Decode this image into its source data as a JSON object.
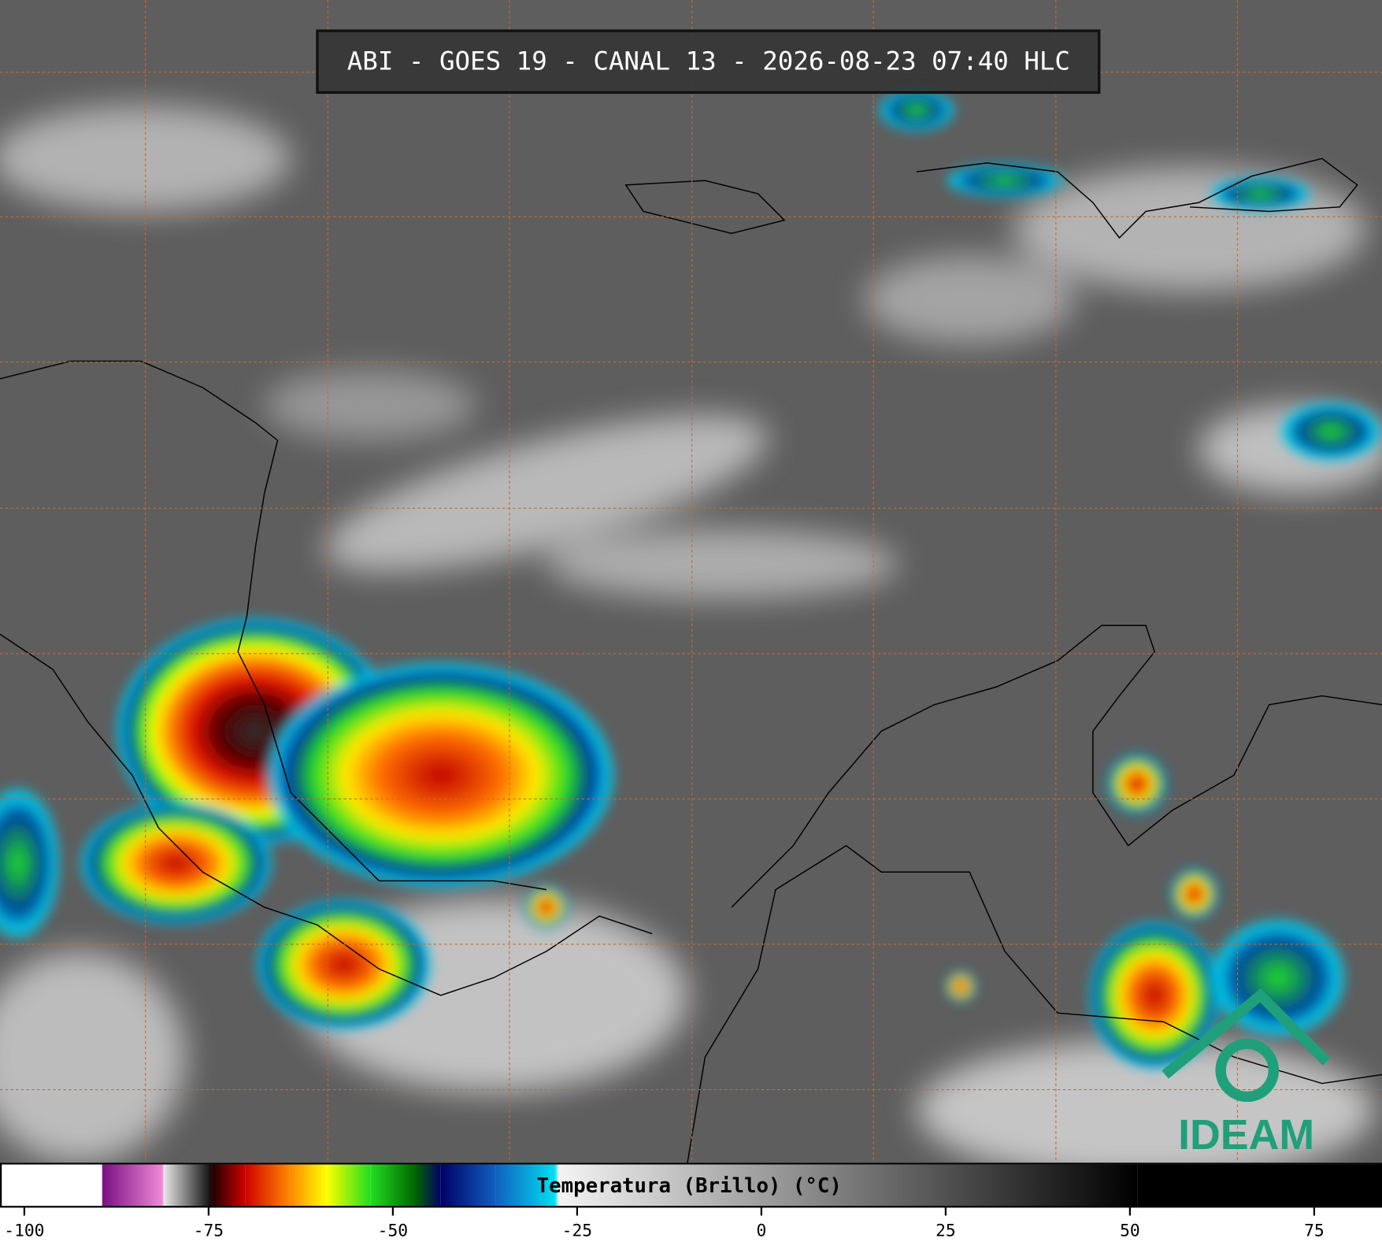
{
  "header": {
    "title": "ABI - GOES 19 - CANAL 13 - 2026-08-23 07:40 HLC"
  },
  "logo": "IDEAM",
  "colorbar": {
    "label": "Temperatura (Brillo) (°C)",
    "lim": [
      -103.3,
      84.2
    ],
    "ticks": [
      -100,
      -75,
      -50,
      -25,
      0,
      25,
      50,
      75
    ],
    "colormap": [
      {
        "value": -103.3,
        "color": "#ffffff"
      },
      {
        "value": -89.5,
        "color": "#ffffff"
      },
      {
        "value": -89.4,
        "color": "#7a1080"
      },
      {
        "value": -81.2,
        "color": "#f08ad8"
      },
      {
        "value": -81.1,
        "color": "#e8e8e8"
      },
      {
        "value": -75.2,
        "color": "#202020"
      },
      {
        "value": -74.5,
        "color": "#200000"
      },
      {
        "value": -70,
        "color": "#d00000"
      },
      {
        "value": -64,
        "color": "#ff8800"
      },
      {
        "value": -59,
        "color": "#ffff00"
      },
      {
        "value": -53,
        "color": "#22dd22"
      },
      {
        "value": -47,
        "color": "#006600"
      },
      {
        "value": -43.5,
        "color": "#000066"
      },
      {
        "value": -36,
        "color": "#1060c0"
      },
      {
        "value": -28,
        "color": "#00e0f0"
      },
      {
        "value": -27.5,
        "color": "#f4f4f4"
      },
      {
        "value": 51,
        "color": "#000000"
      },
      {
        "value": 84.2,
        "color": "#000000"
      }
    ]
  }
}
